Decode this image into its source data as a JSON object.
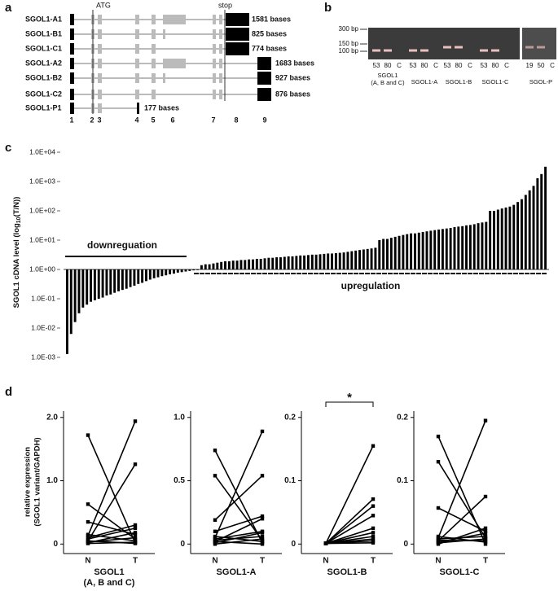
{
  "panel_a": {
    "label": "a",
    "atg": "ATG",
    "stop": "stop",
    "transcripts": [
      {
        "name": "SGOL1-A1",
        "length": "1581 bases"
      },
      {
        "name": "SGOL1-B1",
        "length": "825 bases"
      },
      {
        "name": "SGOL1-C1",
        "length": "774 bases"
      },
      {
        "name": "SGOL1-A2",
        "length": "1683 bases"
      },
      {
        "name": "SGOL1-B2",
        "length": "927 bases"
      },
      {
        "name": "SGOL1-C2",
        "length": "876 bases"
      },
      {
        "name": "SGOL1-P1",
        "length": "177 bases"
      }
    ],
    "exon_numbers": [
      "1",
      "2",
      "3",
      "4",
      "5",
      "6",
      "7",
      "8",
      "9"
    ]
  },
  "panel_b": {
    "label": "b",
    "markers": [
      "300 bp",
      "150 bp",
      "100 bp"
    ],
    "groups": [
      {
        "lanes": [
          "53",
          "80",
          "C"
        ],
        "label": [
          "SGOL1",
          "(A, B and C)"
        ]
      },
      {
        "lanes": [
          "53",
          "80",
          "C"
        ],
        "label": [
          "SGOL1-A"
        ]
      },
      {
        "lanes": [
          "53",
          "80",
          "C"
        ],
        "label": [
          "SGOL1-B"
        ]
      },
      {
        "lanes": [
          "53",
          "80",
          "C"
        ],
        "label": [
          "SGOL1-C"
        ]
      },
      {
        "lanes": [
          "19",
          "50",
          "C"
        ],
        "label": [
          "SGOL-P"
        ]
      }
    ]
  },
  "panel_d": {
    "label": "d",
    "y_label": [
      "relative expression",
      "(SGOL1 variant/GAPDH)"
    ]
  },
  "chart_data": [
    {
      "type": "bar",
      "panel_label": "c",
      "y_label": [
        "SGOL1 cDNA level (log",
        "10",
        "(T/N))"
      ],
      "log_scale": true,
      "ylim": [
        0.001,
        10000
      ],
      "yticks": [
        {
          "value": 0.001,
          "label": "1.0E-03"
        },
        {
          "value": 0.01,
          "label": "1.0E-02"
        },
        {
          "value": 0.1,
          "label": "1.0E-01"
        },
        {
          "value": 1,
          "label": "1.0E+00"
        },
        {
          "value": 10,
          "label": "1.0E+01"
        },
        {
          "value": 100,
          "label": "1.0E+02"
        },
        {
          "value": 1000,
          "label": "1.0E+03"
        },
        {
          "value": 10000,
          "label": "1.0E+04"
        }
      ],
      "color": "#000000",
      "annotations": [
        "downreguation",
        "upregulation"
      ],
      "values": [
        0.0013,
        0.0063,
        0.016,
        0.032,
        0.05,
        0.063,
        0.079,
        0.089,
        0.1,
        0.11,
        0.13,
        0.14,
        0.16,
        0.18,
        0.2,
        0.22,
        0.25,
        0.28,
        0.32,
        0.35,
        0.4,
        0.45,
        0.5,
        0.54,
        0.59,
        0.63,
        0.68,
        0.72,
        0.78,
        0.81,
        0.85,
        0.89,
        0.93,
        0.95,
        1.4,
        1.5,
        1.5,
        1.6,
        1.7,
        1.8,
        1.9,
        1.9,
        2.0,
        2.0,
        2.1,
        2.1,
        2.2,
        2.2,
        2.3,
        2.3,
        2.4,
        2.5,
        2.5,
        2.6,
        2.6,
        2.7,
        2.8,
        2.8,
        2.9,
        3.0,
        3.0,
        3.1,
        3.2,
        3.2,
        3.3,
        3.4,
        3.5,
        3.5,
        3.6,
        3.7,
        3.8,
        4.0,
        4.2,
        4.4,
        4.6,
        4.8,
        5.0,
        5.2,
        5.5,
        10,
        11,
        11,
        12,
        13,
        14,
        15,
        16,
        17,
        17,
        18,
        19,
        20,
        21,
        22,
        23,
        24,
        25,
        26,
        28,
        29,
        30,
        32,
        33,
        35,
        38,
        40,
        42,
        100,
        100,
        110,
        120,
        130,
        140,
        160,
        200,
        250,
        350,
        500,
        710,
        1300,
        1800,
        3200
      ]
    },
    {
      "type": "paired",
      "x_title": [
        "SGOL1",
        "(A, B and C)"
      ],
      "categories": [
        "N",
        "T"
      ],
      "ylim": [
        -0.15,
        2.1
      ],
      "yticks": [
        0,
        {
          "value": 1,
          "label": "1.0"
        },
        {
          "value": 2,
          "label": "2.0"
        }
      ],
      "color": "#000000",
      "pairs": [
        [
          1.72,
          0.02
        ],
        [
          0.63,
          0.08
        ],
        [
          0.35,
          0.15
        ],
        [
          0.13,
          1.94
        ],
        [
          0.05,
          1.26
        ],
        [
          0.1,
          0.3
        ],
        [
          0.15,
          0.05
        ],
        [
          0.08,
          0.25
        ],
        [
          0.03,
          0.1
        ],
        [
          0.02,
          0.18
        ],
        [
          0.01,
          0.03
        ],
        [
          0.05,
          0.01
        ]
      ]
    },
    {
      "type": "paired",
      "x_title": [
        "SGOL1-A"
      ],
      "categories": [
        "N",
        "T"
      ],
      "ylim": [
        -0.075,
        1.05
      ],
      "yticks": [
        0,
        0.5,
        {
          "value": 1,
          "label": "1.0"
        }
      ],
      "color": "#000000",
      "pairs": [
        [
          0.74,
          0.01
        ],
        [
          0.54,
          0.03
        ],
        [
          0.19,
          0.54
        ],
        [
          0.05,
          0.89
        ],
        [
          0.1,
          0.22
        ],
        [
          0.02,
          0.2
        ],
        [
          0.01,
          0.09
        ],
        [
          0.03,
          0.06
        ],
        [
          0.04,
          0.1
        ],
        [
          0.0,
          0.04
        ],
        [
          0.02,
          0.0
        ],
        [
          0.06,
          0.02
        ]
      ]
    },
    {
      "type": "paired",
      "x_title": [
        "SGOL1-B"
      ],
      "categories": [
        "N",
        "T"
      ],
      "ylim": [
        -0.015,
        0.21
      ],
      "yticks": [
        0,
        0.1,
        0.2
      ],
      "color": "#000000",
      "annotation": "*",
      "pairs": [
        [
          0.001,
          0.155
        ],
        [
          0.001,
          0.071
        ],
        [
          0.001,
          0.06
        ],
        [
          0.001,
          0.045
        ],
        [
          0.001,
          0.025
        ],
        [
          0.001,
          0.018
        ],
        [
          0.001,
          0.012
        ],
        [
          0.001,
          0.008
        ],
        [
          0.001,
          0.005
        ],
        [
          0.001,
          0.002
        ]
      ]
    },
    {
      "type": "paired",
      "x_title": [
        "SGOL1-C"
      ],
      "categories": [
        "N",
        "T"
      ],
      "ylim": [
        -0.015,
        0.21
      ],
      "yticks": [
        0,
        0.1,
        0.2
      ],
      "color": "#000000",
      "pairs": [
        [
          0.17,
          0.0
        ],
        [
          0.13,
          0.01
        ],
        [
          0.057,
          0.02
        ],
        [
          0.01,
          0.195
        ],
        [
          0.005,
          0.075
        ],
        [
          0.0,
          0.025
        ],
        [
          0.003,
          0.017
        ],
        [
          0.008,
          0.012
        ],
        [
          0.002,
          0.008
        ],
        [
          0.012,
          0.003
        ],
        [
          0.006,
          0.005
        ]
      ]
    }
  ]
}
